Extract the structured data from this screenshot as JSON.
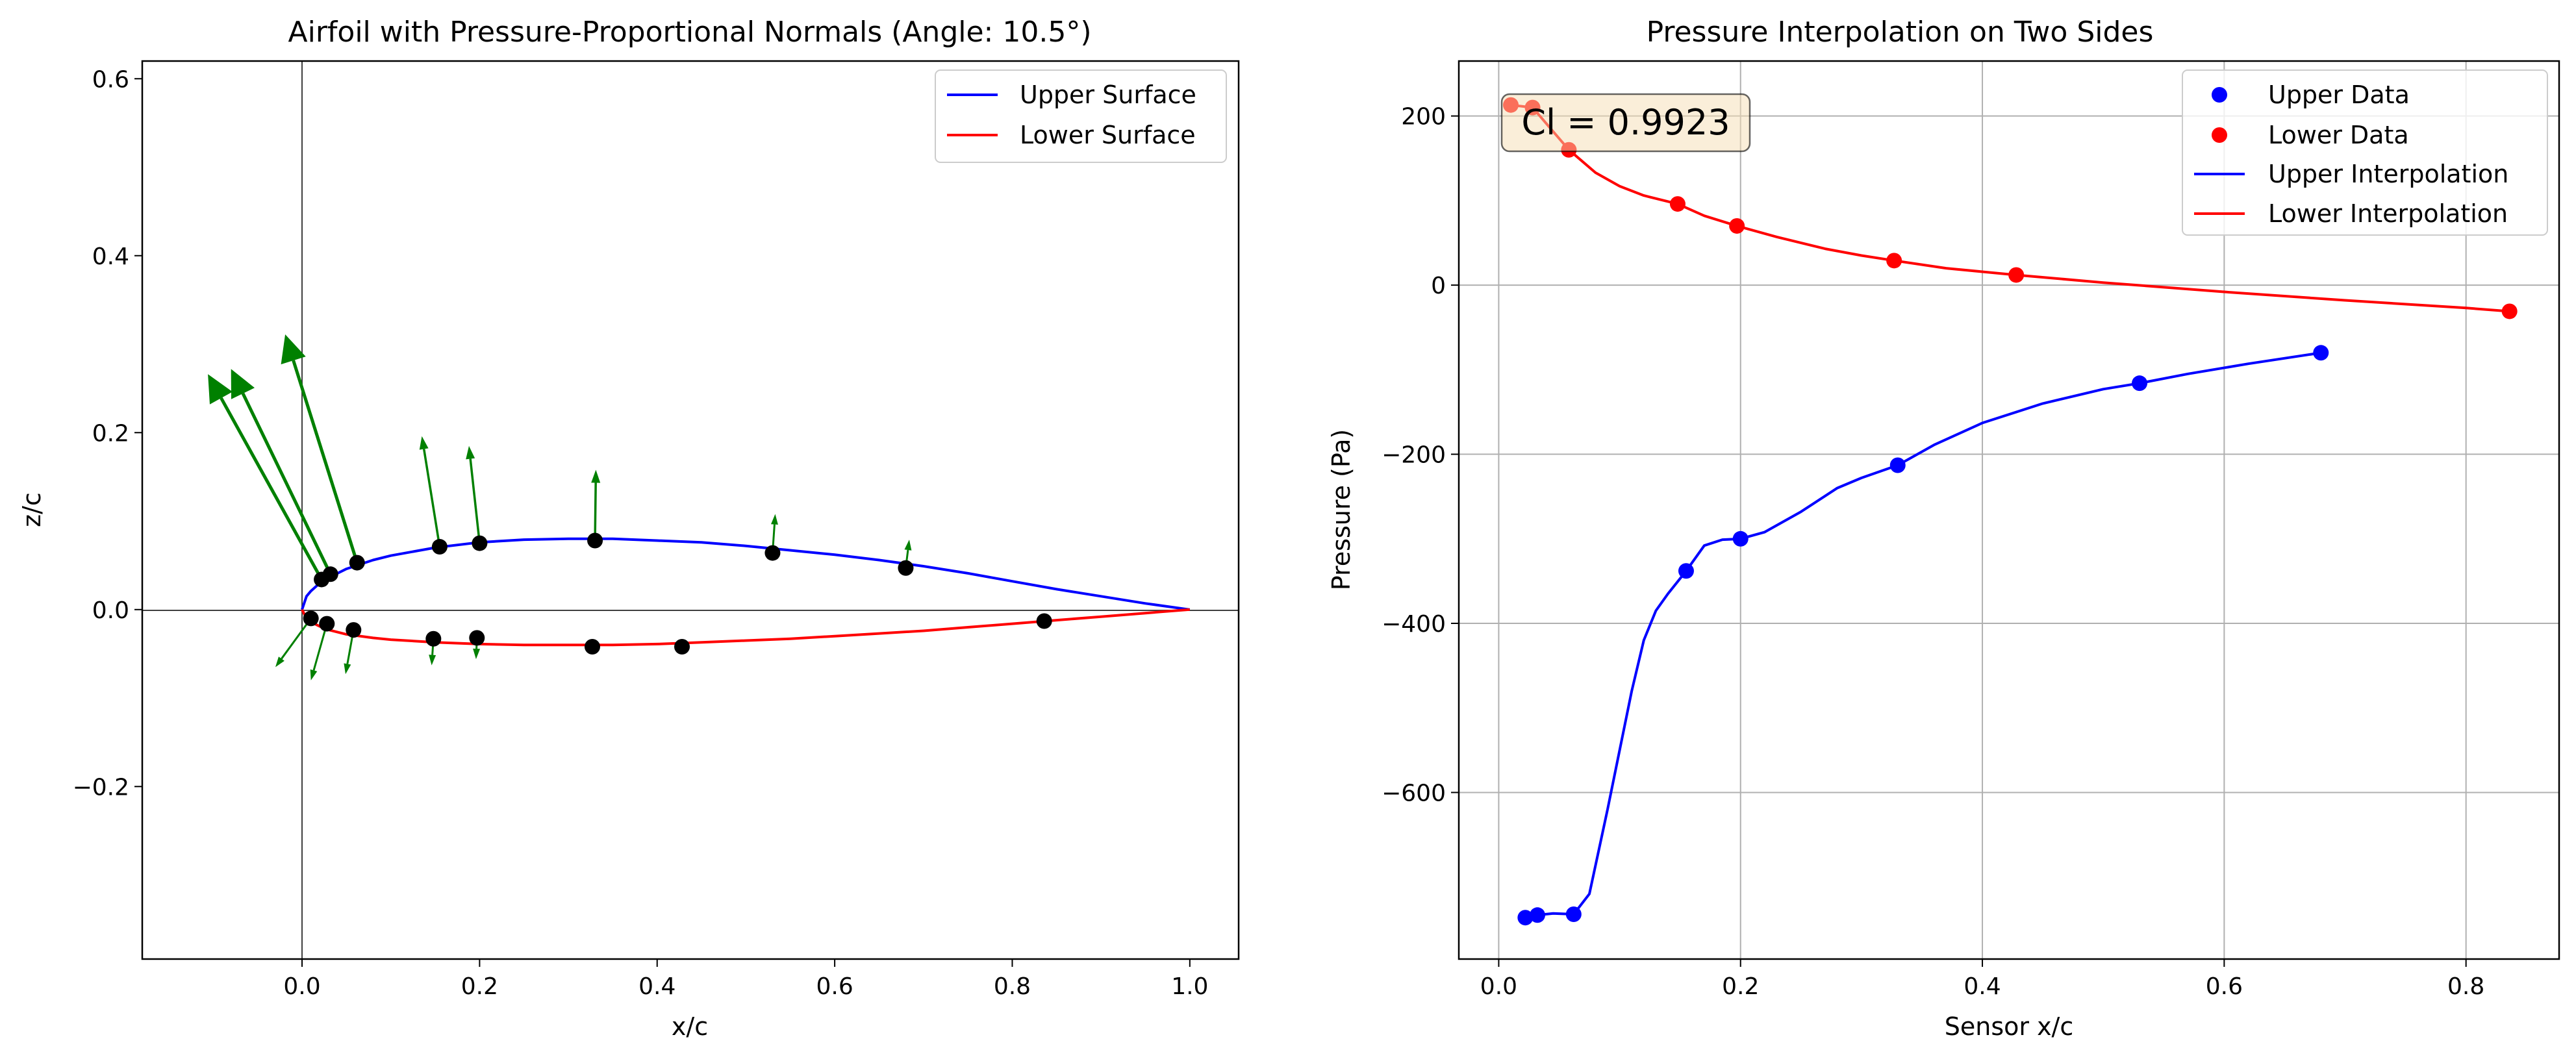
{
  "chart_data": [
    {
      "type": "line",
      "title": "Airfoil with Pressure-Proportional Normals (Angle: 10.5°)",
      "xlabel": "x/c",
      "ylabel": "z/c",
      "xlim": [
        -0.18,
        1.055
      ],
      "ylim": [
        -0.395,
        0.62
      ],
      "xticks": [
        0.0,
        0.2,
        0.4,
        0.6,
        0.8,
        1.0
      ],
      "xtick_labels": [
        "0.0",
        "0.2",
        "0.4",
        "0.6",
        "0.8",
        "1.0"
      ],
      "yticks": [
        -0.2,
        0.0,
        0.2,
        0.4,
        0.6
      ],
      "ytick_labels": [
        "−0.2",
        "0.0",
        "0.2",
        "0.4",
        "0.6"
      ],
      "grid": false,
      "legend_position": "top-right",
      "series": [
        {
          "name": "Upper Surface",
          "color": "#0000ff",
          "x": [
            0.0,
            0.005,
            0.01,
            0.02,
            0.03,
            0.05,
            0.08,
            0.1,
            0.15,
            0.2,
            0.25,
            0.3,
            0.35,
            0.4,
            0.45,
            0.5,
            0.55,
            0.6,
            0.65,
            0.7,
            0.75,
            0.8,
            0.85,
            0.9,
            0.95,
            1.0
          ],
          "y": [
            0.0,
            0.015,
            0.021,
            0.03,
            0.036,
            0.046,
            0.056,
            0.061,
            0.07,
            0.076,
            0.079,
            0.08,
            0.08,
            0.078,
            0.076,
            0.072,
            0.067,
            0.062,
            0.056,
            0.049,
            0.041,
            0.032,
            0.023,
            0.015,
            0.007,
            0.0
          ]
        },
        {
          "name": "Lower Surface",
          "color": "#ff0000",
          "x": [
            0.0,
            0.005,
            0.01,
            0.02,
            0.03,
            0.05,
            0.08,
            0.1,
            0.15,
            0.2,
            0.25,
            0.3,
            0.35,
            0.4,
            0.45,
            0.5,
            0.55,
            0.6,
            0.65,
            0.7,
            0.75,
            0.8,
            0.85,
            0.9,
            0.95,
            1.0
          ],
          "y": [
            0.0,
            -0.01,
            -0.014,
            -0.019,
            -0.023,
            -0.028,
            -0.032,
            -0.034,
            -0.037,
            -0.039,
            -0.04,
            -0.04,
            -0.04,
            -0.039,
            -0.037,
            -0.035,
            -0.033,
            -0.03,
            -0.027,
            -0.024,
            -0.02,
            -0.016,
            -0.012,
            -0.008,
            -0.004,
            0.0
          ]
        }
      ],
      "sensor_points": {
        "color": "#000000",
        "upper": {
          "x": [
            0.022,
            0.032,
            0.062,
            0.155,
            0.2,
            0.33,
            0.53,
            0.68
          ],
          "y": [
            0.034,
            0.04,
            0.053,
            0.071,
            0.075,
            0.078,
            0.064,
            0.047
          ]
        },
        "lower": {
          "x": [
            0.01,
            0.028,
            0.058,
            0.148,
            0.197,
            0.327,
            0.428,
            0.836
          ],
          "y": [
            -0.01,
            -0.016,
            -0.023,
            -0.033,
            -0.032,
            -0.042,
            -0.042,
            -0.013
          ]
        }
      },
      "normals": {
        "color": "#008000",
        "arrows": [
          {
            "x": 0.022,
            "y": 0.034,
            "dx": -0.128,
            "dy": 0.232,
            "size": "large"
          },
          {
            "x": 0.032,
            "y": 0.04,
            "dx": -0.112,
            "dy": 0.232,
            "size": "large"
          },
          {
            "x": 0.062,
            "y": 0.053,
            "dx": -0.081,
            "dy": 0.258,
            "size": "large"
          },
          {
            "x": 0.155,
            "y": 0.071,
            "dx": -0.02,
            "dy": 0.125,
            "size": "small"
          },
          {
            "x": 0.2,
            "y": 0.075,
            "dx": -0.012,
            "dy": 0.11,
            "size": "small"
          },
          {
            "x": 0.33,
            "y": 0.078,
            "dx": 0.001,
            "dy": 0.08,
            "size": "small"
          },
          {
            "x": 0.53,
            "y": 0.064,
            "dx": 0.003,
            "dy": 0.044,
            "size": "tiny"
          },
          {
            "x": 0.68,
            "y": 0.047,
            "dx": 0.004,
            "dy": 0.032,
            "size": "tiny"
          },
          {
            "x": 0.01,
            "y": -0.01,
            "dx": -0.04,
            "dy": -0.055,
            "size": "tiny"
          },
          {
            "x": 0.028,
            "y": -0.016,
            "dx": -0.018,
            "dy": -0.064,
            "size": "tiny"
          },
          {
            "x": 0.058,
            "y": -0.023,
            "dx": -0.009,
            "dy": -0.05,
            "size": "tiny"
          },
          {
            "x": 0.148,
            "y": -0.033,
            "dx": -0.002,
            "dy": -0.03,
            "size": "tiny"
          },
          {
            "x": 0.197,
            "y": -0.032,
            "dx": -0.001,
            "dy": -0.024,
            "size": "tiny"
          }
        ]
      }
    },
    {
      "type": "line",
      "title": "Pressure Interpolation on Two Sides",
      "xlabel": "Sensor x/c",
      "ylabel": "Pressure (Pa)",
      "xlim": [
        -0.033,
        0.877
      ],
      "ylim": [
        -797,
        265
      ],
      "xticks": [
        0.0,
        0.2,
        0.4,
        0.6,
        0.8
      ],
      "xtick_labels": [
        "0.0",
        "0.2",
        "0.4",
        "0.6",
        "0.8"
      ],
      "yticks": [
        -600,
        -400,
        -200,
        0,
        200
      ],
      "ytick_labels": [
        "−600",
        "−400",
        "−200",
        "0",
        "200"
      ],
      "grid": true,
      "legend_position": "top-right",
      "annotation": "Cl = 0.9923",
      "series": [
        {
          "name": "Upper Data",
          "kind": "points",
          "color": "#0000ff",
          "x": [
            0.022,
            0.032,
            0.062,
            0.155,
            0.2,
            0.33,
            0.53,
            0.68
          ],
          "y": [
            -748,
            -745,
            -744,
            -338,
            -300,
            -213,
            -116,
            -80
          ]
        },
        {
          "name": "Lower Data",
          "kind": "points",
          "color": "#ff0000",
          "x": [
            0.01,
            0.028,
            0.058,
            0.148,
            0.197,
            0.327,
            0.428,
            0.836
          ],
          "y": [
            213,
            210,
            160,
            96,
            70,
            29,
            12,
            -31
          ]
        },
        {
          "name": "Upper Interpolation",
          "kind": "line",
          "color": "#0000ff",
          "x": [
            0.022,
            0.032,
            0.045,
            0.062,
            0.075,
            0.09,
            0.1,
            0.11,
            0.12,
            0.13,
            0.14,
            0.155,
            0.17,
            0.185,
            0.2,
            0.22,
            0.25,
            0.28,
            0.3,
            0.33,
            0.36,
            0.4,
            0.45,
            0.5,
            0.53,
            0.57,
            0.62,
            0.68
          ],
          "y": [
            -748,
            -745,
            -743,
            -744,
            -720,
            -620,
            -550,
            -480,
            -420,
            -385,
            -365,
            -338,
            -308,
            -301,
            -300,
            -292,
            -268,
            -240,
            -228,
            -213,
            -189,
            -163,
            -140,
            -123,
            -116,
            -105,
            -93,
            -80
          ]
        },
        {
          "name": "Lower Interpolation",
          "kind": "line",
          "color": "#ff0000",
          "x": [
            0.01,
            0.028,
            0.04,
            0.058,
            0.08,
            0.1,
            0.12,
            0.148,
            0.17,
            0.197,
            0.23,
            0.27,
            0.3,
            0.327,
            0.37,
            0.428,
            0.5,
            0.6,
            0.7,
            0.8,
            0.836
          ],
          "y": [
            213,
            210,
            190,
            160,
            133,
            117,
            106,
            96,
            82,
            70,
            57,
            43,
            35,
            29,
            20,
            12,
            3,
            -8,
            -18,
            -27,
            -31
          ]
        }
      ]
    }
  ]
}
